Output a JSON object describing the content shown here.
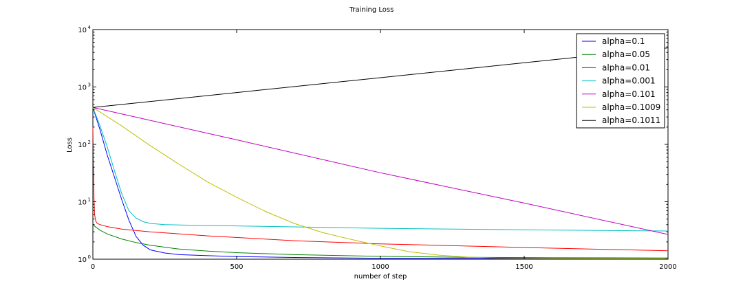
{
  "chart_data": {
    "type": "line",
    "title": "Training Loss",
    "xlabel": "number of step",
    "ylabel": "Loss",
    "xlim": [
      0,
      2000
    ],
    "ylim": [
      1,
      10000
    ],
    "yscale": "log",
    "grid": false,
    "legend_position": "top-right",
    "x_ticks": [
      0,
      500,
      1000,
      1500,
      2000
    ],
    "x_tick_labels": [
      "0",
      "500",
      "1000",
      "1500",
      "2000"
    ],
    "y_ticks": [
      1,
      10,
      100,
      1000,
      10000
    ],
    "y_tick_labels": [
      {
        "base": "10",
        "exp": "0"
      },
      {
        "base": "10",
        "exp": "1"
      },
      {
        "base": "10",
        "exp": "2"
      },
      {
        "base": "10",
        "exp": "3"
      },
      {
        "base": "10",
        "exp": "4"
      }
    ],
    "series": [
      {
        "name": "alpha=0.1",
        "color": "#0000ff",
        "x": [
          0,
          25,
          50,
          75,
          100,
          125,
          150,
          175,
          200,
          250,
          300,
          400,
          500,
          700,
          1000,
          1300,
          1600,
          2000
        ],
        "y": [
          440,
          180,
          65,
          27,
          11,
          4.8,
          2.5,
          1.75,
          1.45,
          1.28,
          1.2,
          1.15,
          1.11,
          1.07,
          1.04,
          1.03,
          1.02,
          1.02
        ]
      },
      {
        "name": "alpha=0.05",
        "color": "#008000",
        "x": [
          0,
          5,
          25,
          50,
          100,
          150,
          200,
          300,
          400,
          500,
          700,
          1000,
          1300,
          1600,
          2000
        ],
        "y": [
          4.2,
          3.8,
          3.2,
          2.75,
          2.25,
          1.95,
          1.75,
          1.5,
          1.38,
          1.3,
          1.2,
          1.12,
          1.08,
          1.06,
          1.05
        ]
      },
      {
        "name": "alpha=0.01",
        "color": "#ff0000",
        "x": [
          0,
          2,
          4,
          6,
          10,
          15,
          25,
          50,
          100,
          200,
          400,
          700,
          1000,
          1500,
          2000
        ],
        "y": [
          200,
          40,
          11,
          6,
          4.6,
          4.2,
          4.0,
          3.7,
          3.35,
          3.0,
          2.55,
          2.1,
          1.85,
          1.6,
          1.4
        ]
      },
      {
        "name": "alpha=0.001",
        "color": "#00bfbf",
        "x": [
          0,
          25,
          50,
          75,
          100,
          125,
          150,
          175,
          200,
          250,
          300,
          500,
          700,
          1000,
          1500,
          2000
        ],
        "y": [
          440,
          210,
          90,
          35,
          14,
          7,
          5.2,
          4.5,
          4.2,
          4.0,
          3.95,
          3.8,
          3.65,
          3.45,
          3.25,
          3.1
        ]
      },
      {
        "name": "alpha=0.101",
        "color": "#bf00bf",
        "x": [
          0,
          500,
          1000,
          1500,
          2000
        ],
        "y": [
          440,
          120,
          32,
          9.5,
          2.7
        ]
      },
      {
        "name": "alpha=0.1009",
        "color": "#bfbf00",
        "x": [
          0,
          100,
          200,
          300,
          400,
          500,
          600,
          700,
          800,
          900,
          1000,
          1100,
          1200,
          1300,
          1400,
          1600,
          1800,
          2000
        ],
        "y": [
          440,
          210,
          95,
          45,
          22,
          12,
          6.8,
          4.2,
          2.9,
          2.2,
          1.7,
          1.35,
          1.18,
          1.09,
          1.05,
          1.03,
          1.02,
          1.02
        ]
      },
      {
        "name": "alpha=0.1011",
        "color": "#000000",
        "x": [
          0,
          500,
          1000,
          1500,
          2000
        ],
        "y": [
          440,
          800,
          1450,
          2650,
          4800
        ]
      }
    ]
  }
}
